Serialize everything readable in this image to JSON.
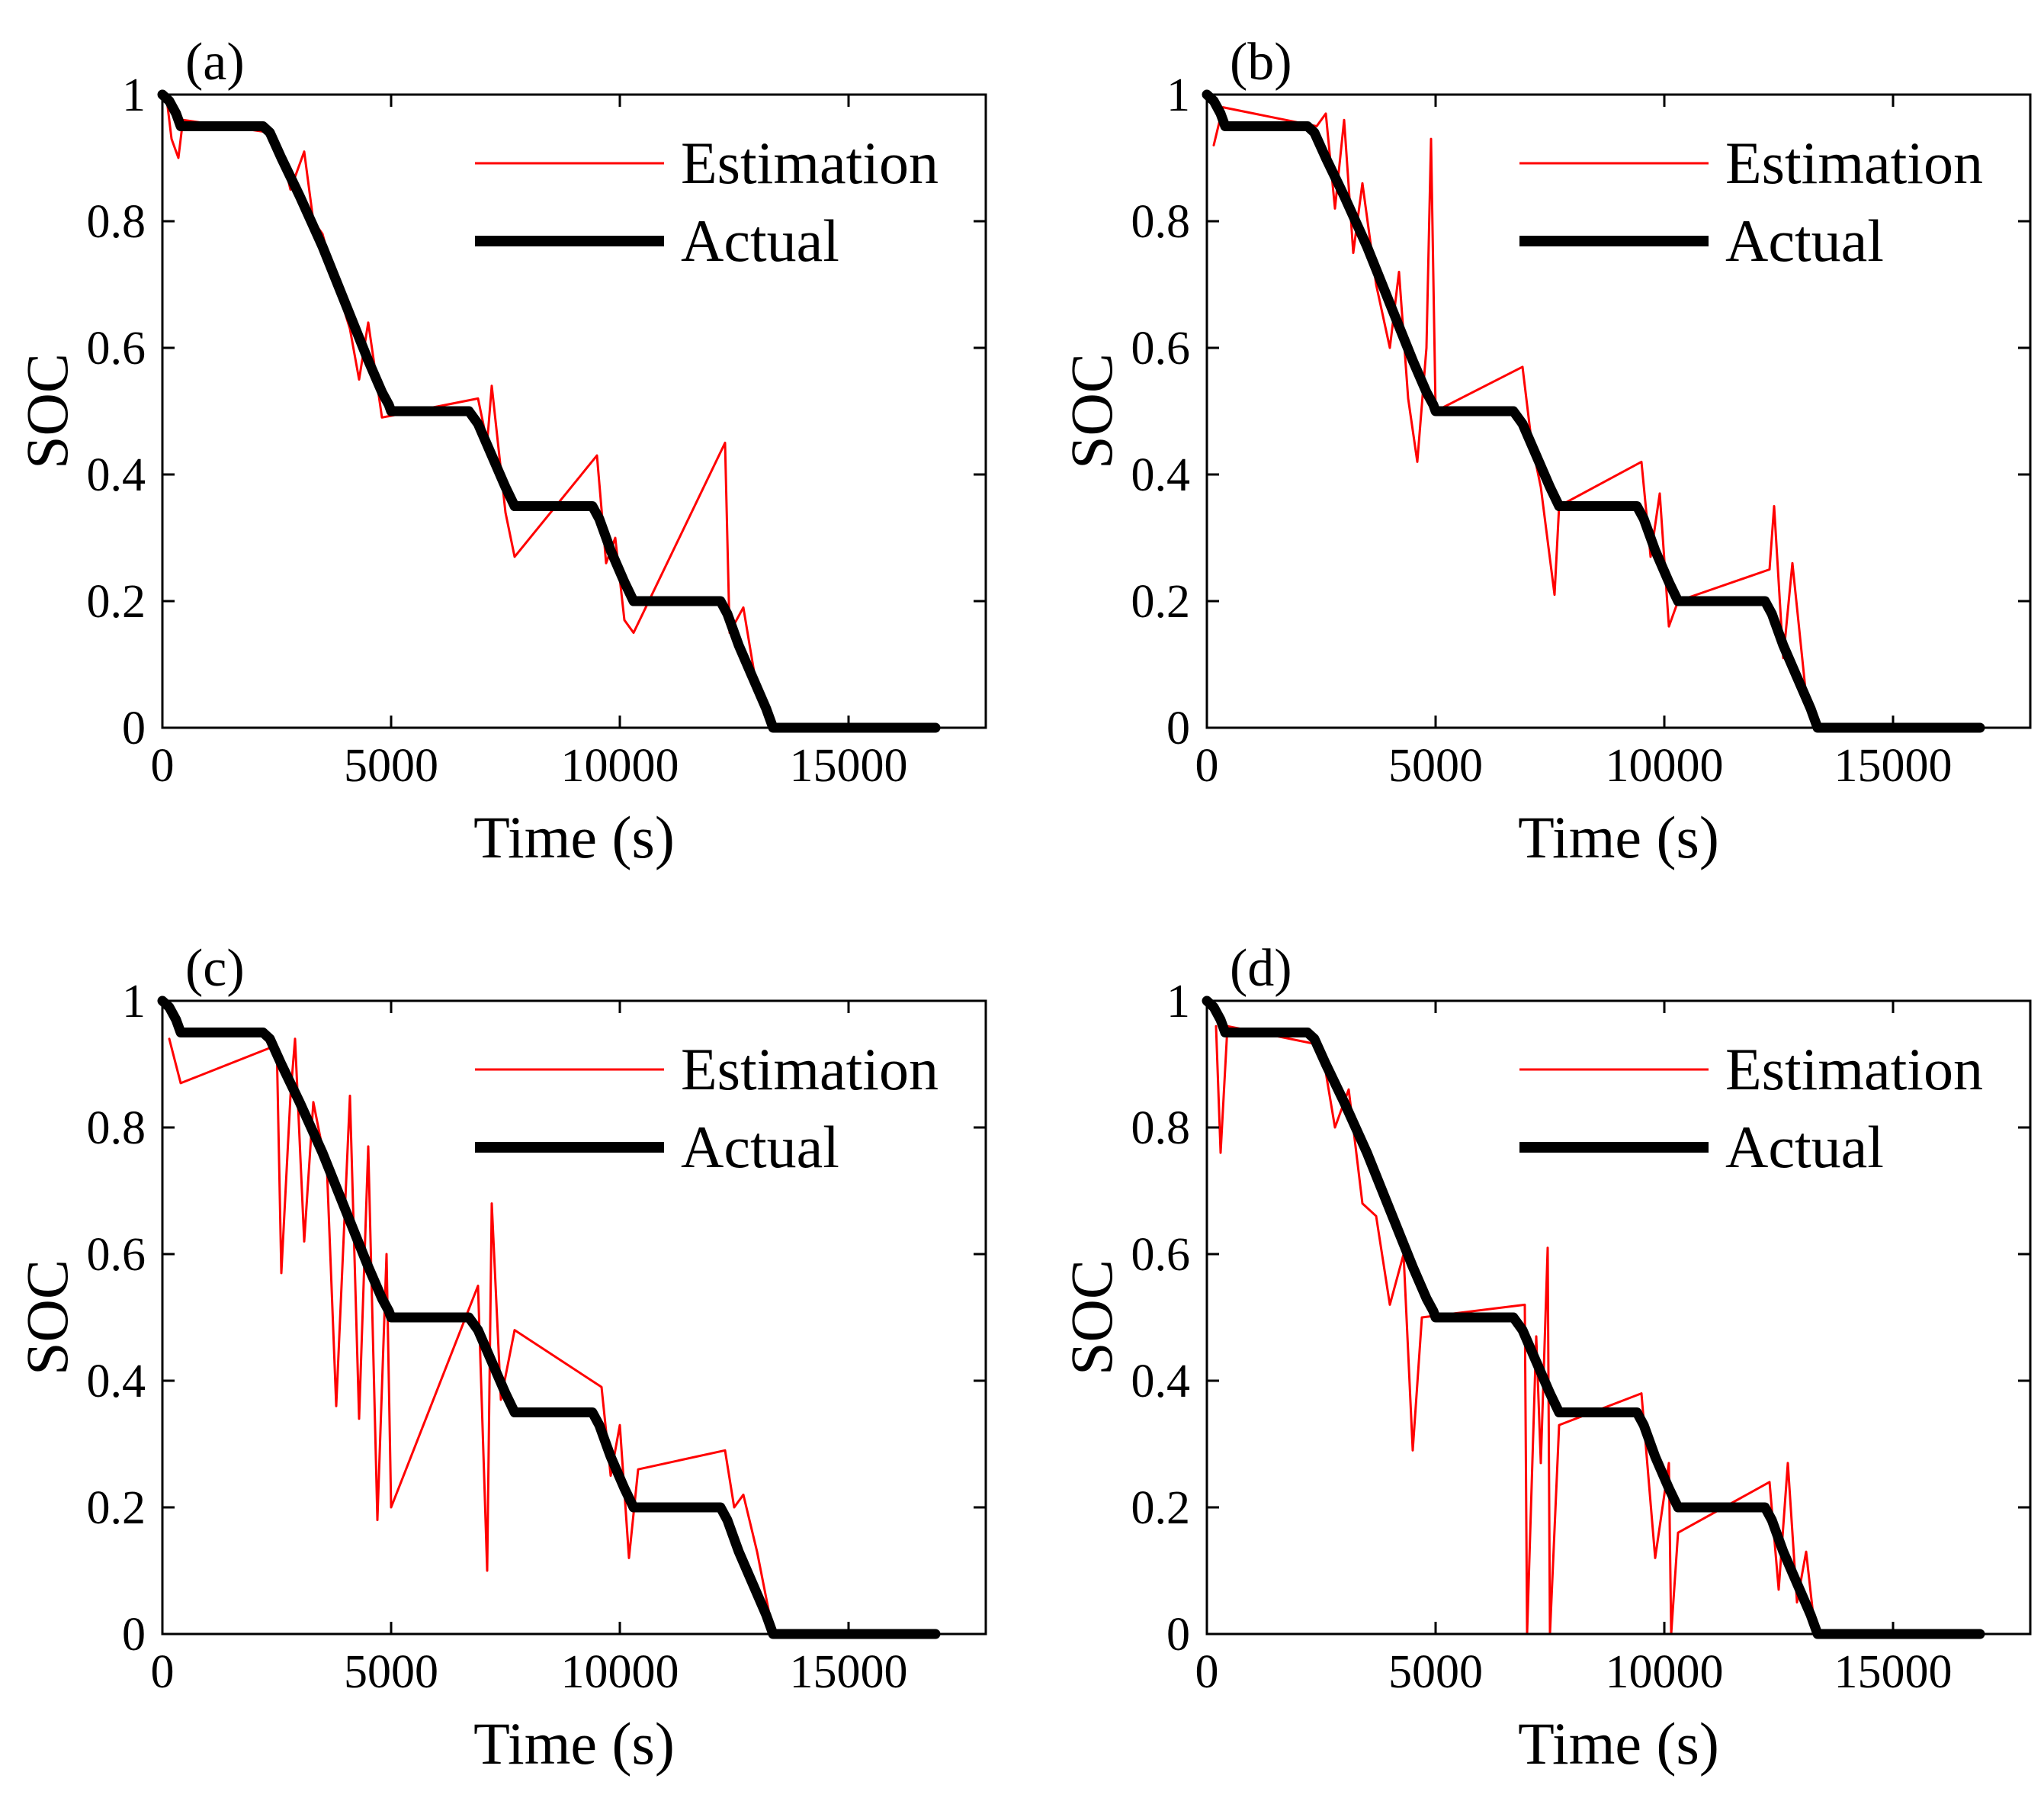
{
  "colors": {
    "estimation": "#ff0000",
    "actual": "#000000",
    "axes": "#000000",
    "background": "#ffffff"
  },
  "chart_data": [
    {
      "type": "line",
      "panel_label": "(a)",
      "xlabel": "Time (s)",
      "ylabel": "SOC",
      "xlim": [
        0,
        18000
      ],
      "ylim": [
        0,
        1
      ],
      "xticks": [
        0,
        5000,
        10000,
        15000
      ],
      "xtick_labels": [
        "0",
        "5000",
        "10000",
        "15000"
      ],
      "yticks": [
        0,
        0.2,
        0.4,
        0.6,
        0.8,
        1
      ],
      "ytick_labels": [
        "0",
        "0.2",
        "0.4",
        "0.6",
        "0.8",
        "1"
      ],
      "legend": {
        "position": "top-right",
        "entries": [
          "Estimation",
          "Actual"
        ]
      },
      "series": [
        {
          "name": "Actual",
          "color": "#000000",
          "x": [
            0,
            150,
            300,
            400,
            2200,
            2350,
            2600,
            3000,
            3500,
            4000,
            4500,
            4800,
            4950,
            5000,
            6700,
            6900,
            7200,
            7500,
            7700,
            9400,
            9550,
            9800,
            10100,
            10300,
            12200,
            12350,
            12600,
            12900,
            13200,
            13350,
            16900
          ],
          "y": [
            1,
            0.99,
            0.97,
            0.95,
            0.95,
            0.94,
            0.9,
            0.84,
            0.76,
            0.67,
            0.58,
            0.53,
            0.51,
            0.5,
            0.5,
            0.48,
            0.43,
            0.38,
            0.35,
            0.35,
            0.33,
            0.28,
            0.23,
            0.2,
            0.2,
            0.18,
            0.13,
            0.08,
            0.03,
            0,
            0
          ]
        },
        {
          "name": "Estimation",
          "color": "#ff0000",
          "x": [
            100,
            200,
            350,
            450,
            2350,
            2600,
            2800,
            3100,
            3300,
            3500,
            3800,
            4100,
            4300,
            4500,
            4800,
            6900,
            7100,
            7200,
            7500,
            7700,
            9500,
            9700,
            9900,
            10100,
            10300,
            12300,
            12400,
            12700,
            13000,
            13300
          ],
          "y": [
            0.99,
            0.93,
            0.9,
            0.96,
            0.94,
            0.91,
            0.85,
            0.91,
            0.8,
            0.78,
            0.7,
            0.63,
            0.55,
            0.64,
            0.49,
            0.52,
            0.45,
            0.54,
            0.34,
            0.27,
            0.43,
            0.26,
            0.3,
            0.17,
            0.15,
            0.45,
            0.15,
            0.19,
            0.06,
            0.01
          ]
        }
      ]
    },
    {
      "type": "line",
      "panel_label": "(b)",
      "xlabel": "Time (s)",
      "ylabel": "SOC",
      "xlim": [
        0,
        18000
      ],
      "ylim": [
        0,
        1
      ],
      "xticks": [
        0,
        5000,
        10000,
        15000
      ],
      "xtick_labels": [
        "0",
        "5000",
        "10000",
        "15000"
      ],
      "yticks": [
        0,
        0.2,
        0.4,
        0.6,
        0.8,
        1
      ],
      "ytick_labels": [
        "0",
        "0.2",
        "0.4",
        "0.6",
        "0.8",
        "1"
      ],
      "legend": {
        "position": "top-right",
        "entries": [
          "Estimation",
          "Actual"
        ]
      },
      "series": [
        {
          "name": "Actual",
          "color": "#000000",
          "x": [
            0,
            150,
            300,
            400,
            2200,
            2350,
            2600,
            3000,
            3500,
            4000,
            4500,
            4800,
            4950,
            5000,
            6700,
            6900,
            7200,
            7500,
            7700,
            9400,
            9550,
            9800,
            10100,
            10300,
            12200,
            12350,
            12600,
            12900,
            13200,
            13350,
            16900
          ],
          "y": [
            1,
            0.99,
            0.97,
            0.95,
            0.95,
            0.94,
            0.9,
            0.84,
            0.76,
            0.67,
            0.58,
            0.53,
            0.51,
            0.5,
            0.5,
            0.48,
            0.43,
            0.38,
            0.35,
            0.35,
            0.33,
            0.28,
            0.23,
            0.2,
            0.2,
            0.18,
            0.13,
            0.08,
            0.03,
            0,
            0
          ]
        },
        {
          "name": "Estimation",
          "color": "#ff0000",
          "x": [
            150,
            350,
            2400,
            2600,
            2800,
            3000,
            3200,
            3400,
            3700,
            4000,
            4200,
            4400,
            4600,
            4800,
            4900,
            5000,
            6900,
            7100,
            7300,
            7600,
            7700,
            9500,
            9700,
            9900,
            10100,
            10300,
            12300,
            12400,
            12600,
            12800,
            13100
          ],
          "y": [
            0.92,
            0.98,
            0.95,
            0.97,
            0.82,
            0.96,
            0.75,
            0.86,
            0.7,
            0.6,
            0.72,
            0.52,
            0.42,
            0.6,
            0.93,
            0.5,
            0.57,
            0.45,
            0.38,
            0.21,
            0.35,
            0.42,
            0.27,
            0.37,
            0.16,
            0.2,
            0.25,
            0.35,
            0.11,
            0.26,
            0.05
          ]
        }
      ]
    },
    {
      "type": "line",
      "panel_label": "(c)",
      "xlabel": "Time (s)",
      "ylabel": "SOC",
      "xlim": [
        0,
        18000
      ],
      "ylim": [
        0,
        1
      ],
      "xticks": [
        0,
        5000,
        10000,
        15000
      ],
      "xtick_labels": [
        "0",
        "5000",
        "10000",
        "15000"
      ],
      "yticks": [
        0,
        0.2,
        0.4,
        0.6,
        0.8,
        1
      ],
      "ytick_labels": [
        "0",
        "0.2",
        "0.4",
        "0.6",
        "0.8",
        "1"
      ],
      "legend": {
        "position": "top-right",
        "entries": [
          "Estimation",
          "Actual"
        ]
      },
      "series": [
        {
          "name": "Actual",
          "color": "#000000",
          "x": [
            0,
            150,
            300,
            400,
            2200,
            2350,
            2600,
            3000,
            3500,
            4000,
            4500,
            4800,
            4950,
            5000,
            6700,
            6900,
            7200,
            7500,
            7700,
            9400,
            9550,
            9800,
            10100,
            10300,
            12200,
            12350,
            12600,
            12900,
            13200,
            13350,
            16900
          ],
          "y": [
            1,
            0.99,
            0.97,
            0.95,
            0.95,
            0.94,
            0.9,
            0.84,
            0.76,
            0.67,
            0.58,
            0.53,
            0.51,
            0.5,
            0.5,
            0.48,
            0.43,
            0.38,
            0.35,
            0.35,
            0.33,
            0.28,
            0.23,
            0.2,
            0.2,
            0.18,
            0.13,
            0.08,
            0.03,
            0,
            0
          ]
        },
        {
          "name": "Estimation",
          "color": "#ff0000",
          "x": [
            150,
            400,
            2500,
            2600,
            2800,
            2900,
            3100,
            3300,
            3600,
            3800,
            4100,
            4300,
            4500,
            4700,
            4900,
            5000,
            6900,
            7100,
            7200,
            7400,
            7700,
            9600,
            9800,
            10000,
            10200,
            10400,
            12300,
            12500,
            12700,
            13000,
            13300
          ],
          "y": [
            0.94,
            0.87,
            0.93,
            0.57,
            0.85,
            0.94,
            0.62,
            0.84,
            0.73,
            0.36,
            0.85,
            0.34,
            0.77,
            0.18,
            0.6,
            0.2,
            0.55,
            0.1,
            0.68,
            0.37,
            0.48,
            0.39,
            0.25,
            0.33,
            0.12,
            0.26,
            0.29,
            0.2,
            0.22,
            0.13,
            0.02
          ]
        }
      ]
    },
    {
      "type": "line",
      "panel_label": "(d)",
      "xlabel": "Time (s)",
      "ylabel": "SOC",
      "xlim": [
        0,
        18000
      ],
      "ylim": [
        0,
        1
      ],
      "xticks": [
        0,
        5000,
        10000,
        15000
      ],
      "xtick_labels": [
        "0",
        "5000",
        "10000",
        "15000"
      ],
      "yticks": [
        0,
        0.2,
        0.4,
        0.6,
        0.8,
        1
      ],
      "ytick_labels": [
        "0",
        "0.2",
        "0.4",
        "0.6",
        "0.8",
        "1"
      ],
      "legend": {
        "position": "top-right",
        "entries": [
          "Estimation",
          "Actual"
        ]
      },
      "series": [
        {
          "name": "Actual",
          "color": "#000000",
          "x": [
            0,
            150,
            300,
            400,
            2200,
            2350,
            2600,
            3000,
            3500,
            4000,
            4500,
            4800,
            4950,
            5000,
            6700,
            6900,
            7200,
            7500,
            7700,
            9400,
            9550,
            9800,
            10100,
            10300,
            12200,
            12350,
            12600,
            12900,
            13200,
            13350,
            16900
          ],
          "y": [
            1,
            0.99,
            0.97,
            0.95,
            0.95,
            0.94,
            0.9,
            0.84,
            0.76,
            0.67,
            0.58,
            0.53,
            0.51,
            0.5,
            0.5,
            0.48,
            0.43,
            0.38,
            0.35,
            0.35,
            0.33,
            0.28,
            0.23,
            0.2,
            0.2,
            0.18,
            0.13,
            0.08,
            0.03,
            0,
            0
          ]
        },
        {
          "name": "Estimation",
          "color": "#ff0000",
          "x": [
            200,
            300,
            450,
            2500,
            2800,
            3100,
            3400,
            3700,
            4000,
            4300,
            4500,
            4700,
            6950,
            7000,
            7200,
            7300,
            7450,
            7500,
            7700,
            9500,
            9800,
            10100,
            10150,
            10300,
            12300,
            12500,
            12700,
            12900,
            13100,
            13300
          ],
          "y": [
            0.96,
            0.76,
            0.96,
            0.93,
            0.8,
            0.86,
            0.68,
            0.66,
            0.52,
            0.6,
            0.29,
            0.5,
            0.52,
            0,
            0.47,
            0.27,
            0.61,
            0,
            0.33,
            0.38,
            0.12,
            0.27,
            0,
            0.16,
            0.24,
            0.07,
            0.27,
            0.05,
            0.13,
            0
          ]
        }
      ]
    }
  ]
}
